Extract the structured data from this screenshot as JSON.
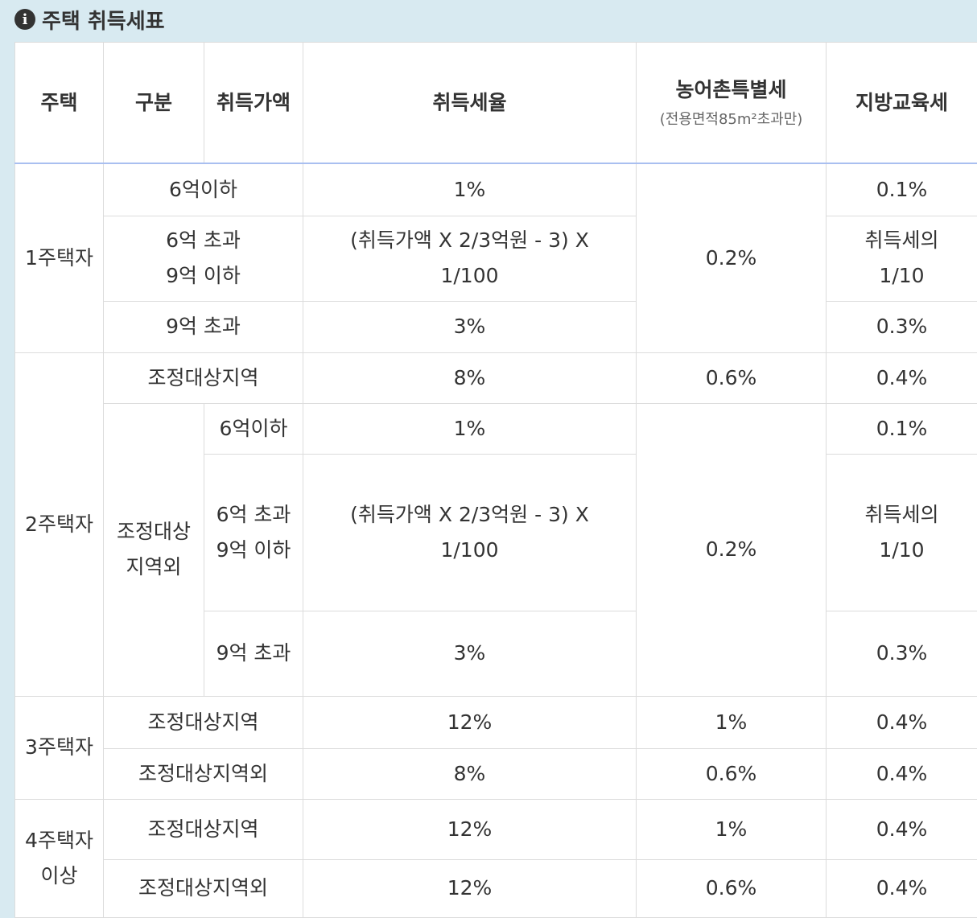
{
  "header": {
    "title": "주택 취득세표"
  },
  "table": {
    "columns": [
      "주택",
      "구분",
      "취득가액",
      "취득세율",
      {
        "title": "농어촌특별세",
        "note": "(전용면적85m²초과만)"
      },
      "지방교육세"
    ],
    "rows": [
      [
        "1주택자",
        "6억이하",
        "1%",
        "0.2%",
        "0.1%"
      ],
      [
        "6억 초과\n9억 이하",
        "(취득가액 X 2/3억원 - 3) X\n1/100",
        "취득세의\n1/10"
      ],
      [
        "9억 초과",
        "3%",
        "0.3%"
      ],
      [
        "2주택자",
        "조정대상지역",
        "8%",
        "0.6%",
        "0.4%"
      ],
      [
        "조정대상지역외",
        "6억이하",
        "1%",
        "0.2%",
        "0.1%"
      ],
      [
        "6억 초과\n9억 이하",
        "(취득가액 X 2/3억원 - 3) X\n1/100",
        "취득세의\n1/10"
      ],
      [
        "9억 초과",
        "3%",
        "0.3%"
      ],
      [
        "3주택자",
        "조정대상지역",
        "12%",
        "1%",
        "0.4%"
      ],
      [
        "조정대상지역외",
        "8%",
        "0.6%",
        "0.4%"
      ],
      [
        "4주택자 이상",
        "조정대상지역",
        "12%",
        "1%",
        "0.4%"
      ],
      [
        "조정대상지역외",
        "12%",
        "0.6%",
        "0.4%"
      ]
    ]
  }
}
